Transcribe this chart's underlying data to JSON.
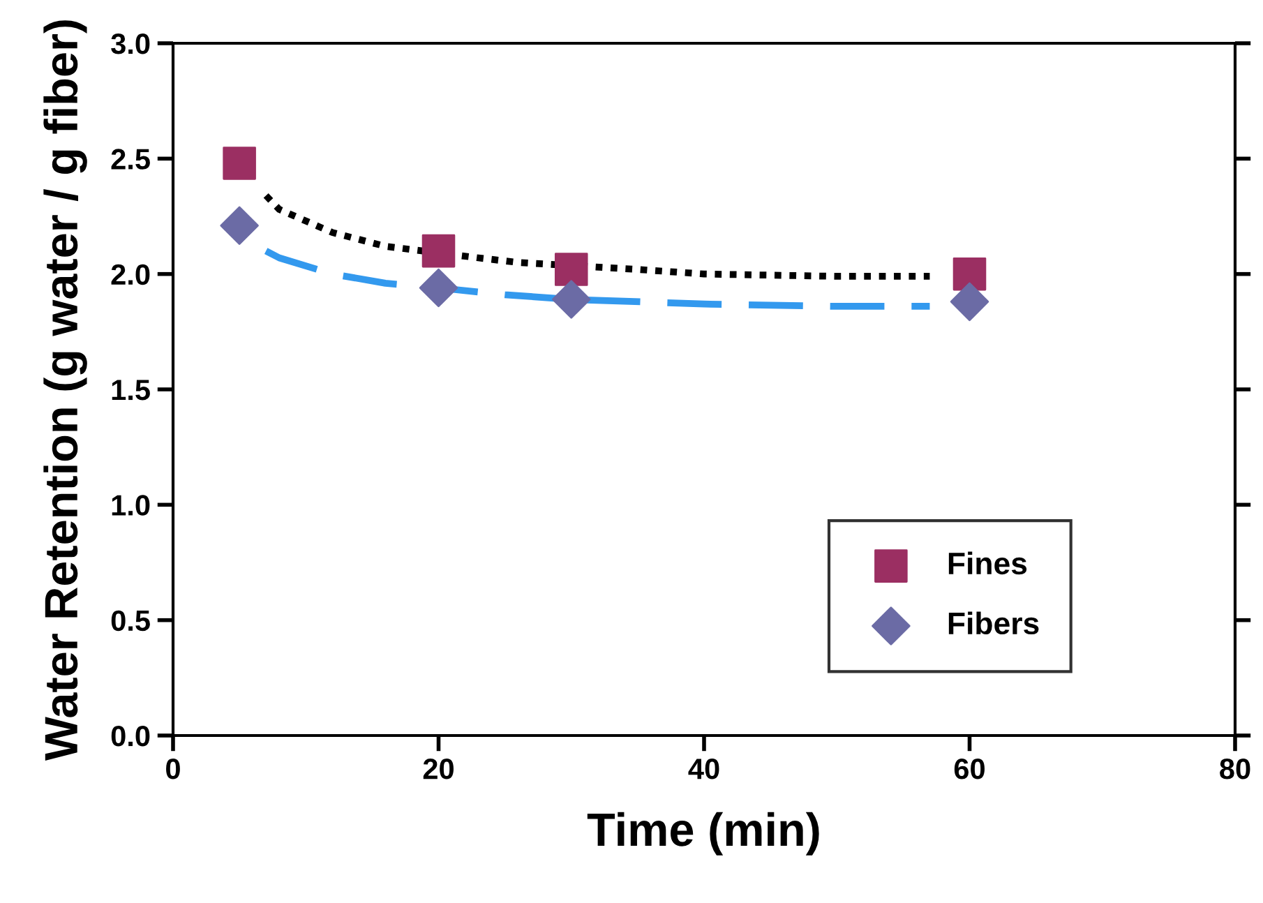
{
  "chart_data": {
    "type": "scatter",
    "xlabel": "Time (min)",
    "ylabel": "Water Retention (g water / g fiber)",
    "xlim": [
      0,
      80
    ],
    "xticks": [
      0,
      20,
      40,
      60,
      80
    ],
    "ylim": [
      0,
      3.0
    ],
    "yticks": [
      {
        "value": 0,
        "label": "0.0"
      },
      {
        "value": 0.5,
        "label": "0.5"
      },
      {
        "value": 1.0,
        "label": "1.0"
      },
      {
        "value": 1.5,
        "label": "1.5"
      },
      {
        "value": 2.0,
        "label": "2.0"
      },
      {
        "value": 2.5,
        "label": "2.5"
      },
      {
        "value": 3.0,
        "label": "3.0"
      }
    ],
    "grid": false,
    "legend": "bottom right",
    "series": [
      {
        "type": "line",
        "color": "#000000",
        "line_style": "dotted",
        "marker": "none",
        "x": [
          7,
          8,
          12,
          16,
          23,
          26,
          35,
          40,
          50,
          57
        ],
        "values": [
          2.34,
          2.28,
          2.18,
          2.12,
          2.07,
          2.05,
          2.02,
          2.0,
          1.99,
          1.99
        ]
      },
      {
        "type": "line",
        "color": "#3399ee",
        "line_style": "dashed",
        "marker": "none",
        "x": [
          7,
          8,
          12,
          16,
          20,
          25,
          30,
          40,
          50,
          57
        ],
        "values": [
          2.1,
          2.07,
          2.0,
          1.96,
          1.94,
          1.91,
          1.89,
          1.87,
          1.86,
          1.86
        ]
      },
      {
        "name": "Fines",
        "color": "#9b2f62",
        "marker": "square",
        "x": [
          5,
          20,
          30,
          60
        ],
        "values": [
          2.48,
          2.1,
          2.02,
          2.0
        ]
      },
      {
        "name": "Fibers",
        "color": "#6b6ba5",
        "marker": "diamond",
        "x": [
          5,
          20,
          30,
          60
        ],
        "values": [
          2.21,
          1.94,
          1.89,
          1.88
        ]
      }
    ]
  }
}
